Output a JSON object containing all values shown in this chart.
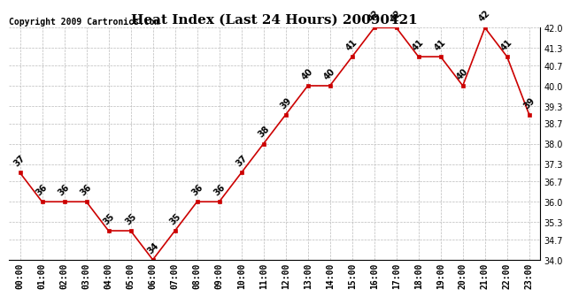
{
  "title": "Heat Index (Last 24 Hours) 20090421",
  "copyright": "Copyright 2009 Cartronics.com",
  "hours": [
    "00:00",
    "01:00",
    "02:00",
    "03:00",
    "04:00",
    "05:00",
    "06:00",
    "07:00",
    "08:00",
    "09:00",
    "10:00",
    "11:00",
    "12:00",
    "13:00",
    "14:00",
    "15:00",
    "16:00",
    "17:00",
    "18:00",
    "19:00",
    "20:00",
    "21:00",
    "22:00",
    "23:00"
  ],
  "values": [
    37,
    36,
    36,
    36,
    35,
    35,
    34,
    35,
    36,
    36,
    37,
    38,
    39,
    40,
    40,
    41,
    42,
    42,
    41,
    41,
    40,
    42,
    41,
    39
  ],
  "ylim": [
    34.0,
    42.0
  ],
  "yticks": [
    34.0,
    34.7,
    35.3,
    36.0,
    36.7,
    37.3,
    38.0,
    38.7,
    39.3,
    40.0,
    40.7,
    41.3,
    42.0
  ],
  "line_color": "#cc0000",
  "marker_color": "#cc0000",
  "bg_color": "#ffffff",
  "grid_color": "#bbbbbb",
  "title_fontsize": 11,
  "tick_fontsize": 7,
  "annotation_fontsize": 7,
  "copyright_fontsize": 7
}
